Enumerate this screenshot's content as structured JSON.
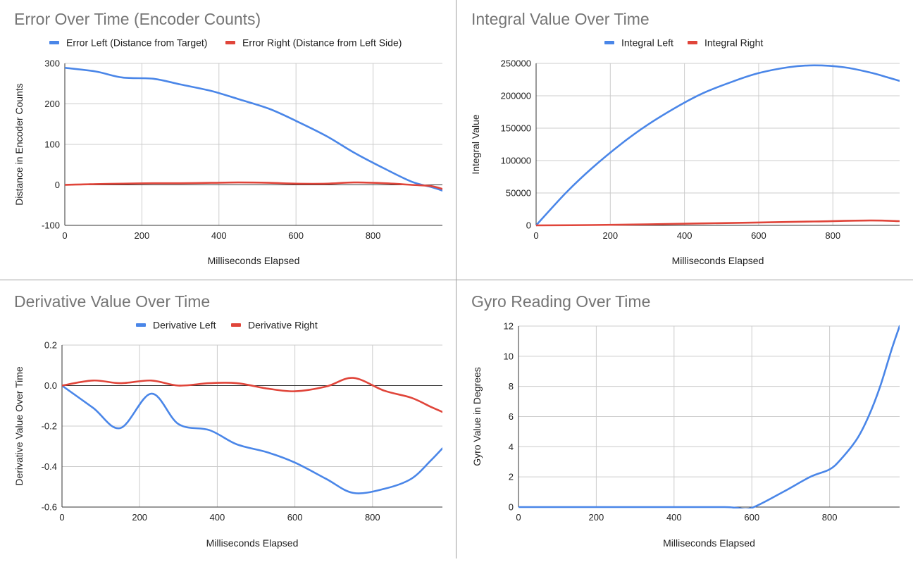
{
  "colors": {
    "blue": "#4a86e8",
    "red": "#e0453a",
    "grid": "#cccccc",
    "axis": "#333333",
    "title": "#757575",
    "text": "#222222"
  },
  "chart_data": [
    {
      "type": "line",
      "title": "Error Over Time (Encoder Counts)",
      "xlabel": "Milliseconds Elapsed",
      "ylabel": "Distance in Encoder Counts",
      "xlim": [
        0,
        980
      ],
      "ylim": [
        -100,
        300
      ],
      "xticks": [
        0,
        200,
        400,
        600,
        800
      ],
      "yticks": [
        -100,
        0,
        100,
        200,
        300
      ],
      "grid": true,
      "legend_position": "top",
      "series": [
        {
          "name": "Error Left (Distance from Target)",
          "color": "#4a86e8",
          "x": [
            0,
            80,
            150,
            230,
            300,
            380,
            450,
            530,
            600,
            680,
            750,
            830,
            900,
            950,
            980
          ],
          "y": [
            289,
            280,
            265,
            262,
            248,
            232,
            212,
            188,
            158,
            120,
            80,
            40,
            8,
            -5,
            -14
          ]
        },
        {
          "name": "Error Right (Distance from Left Side)",
          "color": "#e0453a",
          "x": [
            0,
            80,
            150,
            230,
            300,
            380,
            450,
            530,
            600,
            680,
            750,
            830,
            900,
            950,
            980
          ],
          "y": [
            0,
            2,
            3,
            4,
            4,
            5,
            6,
            5,
            3,
            3,
            6,
            4,
            0,
            -3,
            -10
          ]
        }
      ]
    },
    {
      "type": "line",
      "title": "Integral Value Over Time",
      "xlabel": "Milliseconds Elapsed",
      "ylabel": "Integral Value",
      "xlim": [
        0,
        980
      ],
      "ylim": [
        0,
        250000
      ],
      "xticks": [
        0,
        200,
        400,
        600,
        800
      ],
      "yticks": [
        0,
        50000,
        100000,
        150000,
        200000,
        250000
      ],
      "grid": true,
      "legend_position": "top",
      "series": [
        {
          "name": "Integral Left",
          "color": "#4a86e8",
          "x": [
            0,
            80,
            150,
            230,
            300,
            380,
            450,
            530,
            600,
            680,
            750,
            830,
            900,
            950,
            980
          ],
          "y": [
            0,
            50000,
            88000,
            126000,
            155000,
            183000,
            204000,
            222000,
            235000,
            244000,
            247000,
            244000,
            236000,
            228000,
            223000
          ]
        },
        {
          "name": "Integral Right",
          "color": "#e0453a",
          "x": [
            0,
            150,
            300,
            450,
            600,
            750,
            900,
            980
          ],
          "y": [
            0,
            500,
            1500,
            3000,
            4500,
            6000,
            7500,
            6500
          ]
        }
      ]
    },
    {
      "type": "line",
      "title": "Derivative Value Over Time",
      "xlabel": "Milliseconds Elapsed",
      "ylabel": "Derivative Value Over Time",
      "xlim": [
        0,
        980
      ],
      "ylim": [
        -0.6,
        0.2
      ],
      "xticks": [
        0,
        200,
        400,
        600,
        800
      ],
      "yticks": [
        -0.6,
        -0.4,
        -0.2,
        0.0,
        0.2
      ],
      "ytick_labels": [
        "-0.6",
        "-0.4",
        "-0.2",
        "0.0",
        "0.2"
      ],
      "grid": true,
      "legend_position": "top",
      "series": [
        {
          "name": "Derivative Left",
          "color": "#4a86e8",
          "x": [
            0,
            80,
            150,
            230,
            300,
            380,
            450,
            530,
            600,
            680,
            750,
            830,
            900,
            950,
            980
          ],
          "y": [
            0,
            -0.11,
            -0.21,
            -0.04,
            -0.19,
            -0.22,
            -0.29,
            -0.33,
            -0.38,
            -0.46,
            -0.53,
            -0.51,
            -0.46,
            -0.37,
            -0.31
          ]
        },
        {
          "name": "Derivative Right",
          "color": "#e0453a",
          "x": [
            0,
            80,
            150,
            230,
            300,
            380,
            450,
            530,
            600,
            680,
            750,
            830,
            900,
            950,
            980
          ],
          "y": [
            0,
            0.025,
            0.012,
            0.025,
            0.0,
            0.012,
            0.012,
            -0.015,
            -0.028,
            -0.005,
            0.038,
            -0.025,
            -0.06,
            -0.105,
            -0.13
          ]
        }
      ]
    },
    {
      "type": "line",
      "title": "Gyro Reading Over Time",
      "xlabel": "Milliseconds Elapsed",
      "ylabel": "Gyro Value in Degrees",
      "xlim": [
        0,
        980
      ],
      "ylim": [
        0,
        12
      ],
      "xticks": [
        0,
        200,
        400,
        600,
        800
      ],
      "yticks": [
        0,
        2,
        4,
        6,
        8,
        10,
        12
      ],
      "grid": true,
      "legend_position": "none",
      "series": [
        {
          "name": "",
          "color": "#4a86e8",
          "x": [
            0,
            200,
            400,
            530,
            560,
            600,
            680,
            750,
            800,
            830,
            870,
            900,
            930,
            960,
            980
          ],
          "y": [
            0,
            0,
            0,
            0,
            -0.05,
            -0.05,
            1.0,
            2.0,
            2.5,
            3.2,
            4.5,
            6.0,
            8.0,
            10.5,
            12.0
          ]
        }
      ]
    }
  ]
}
